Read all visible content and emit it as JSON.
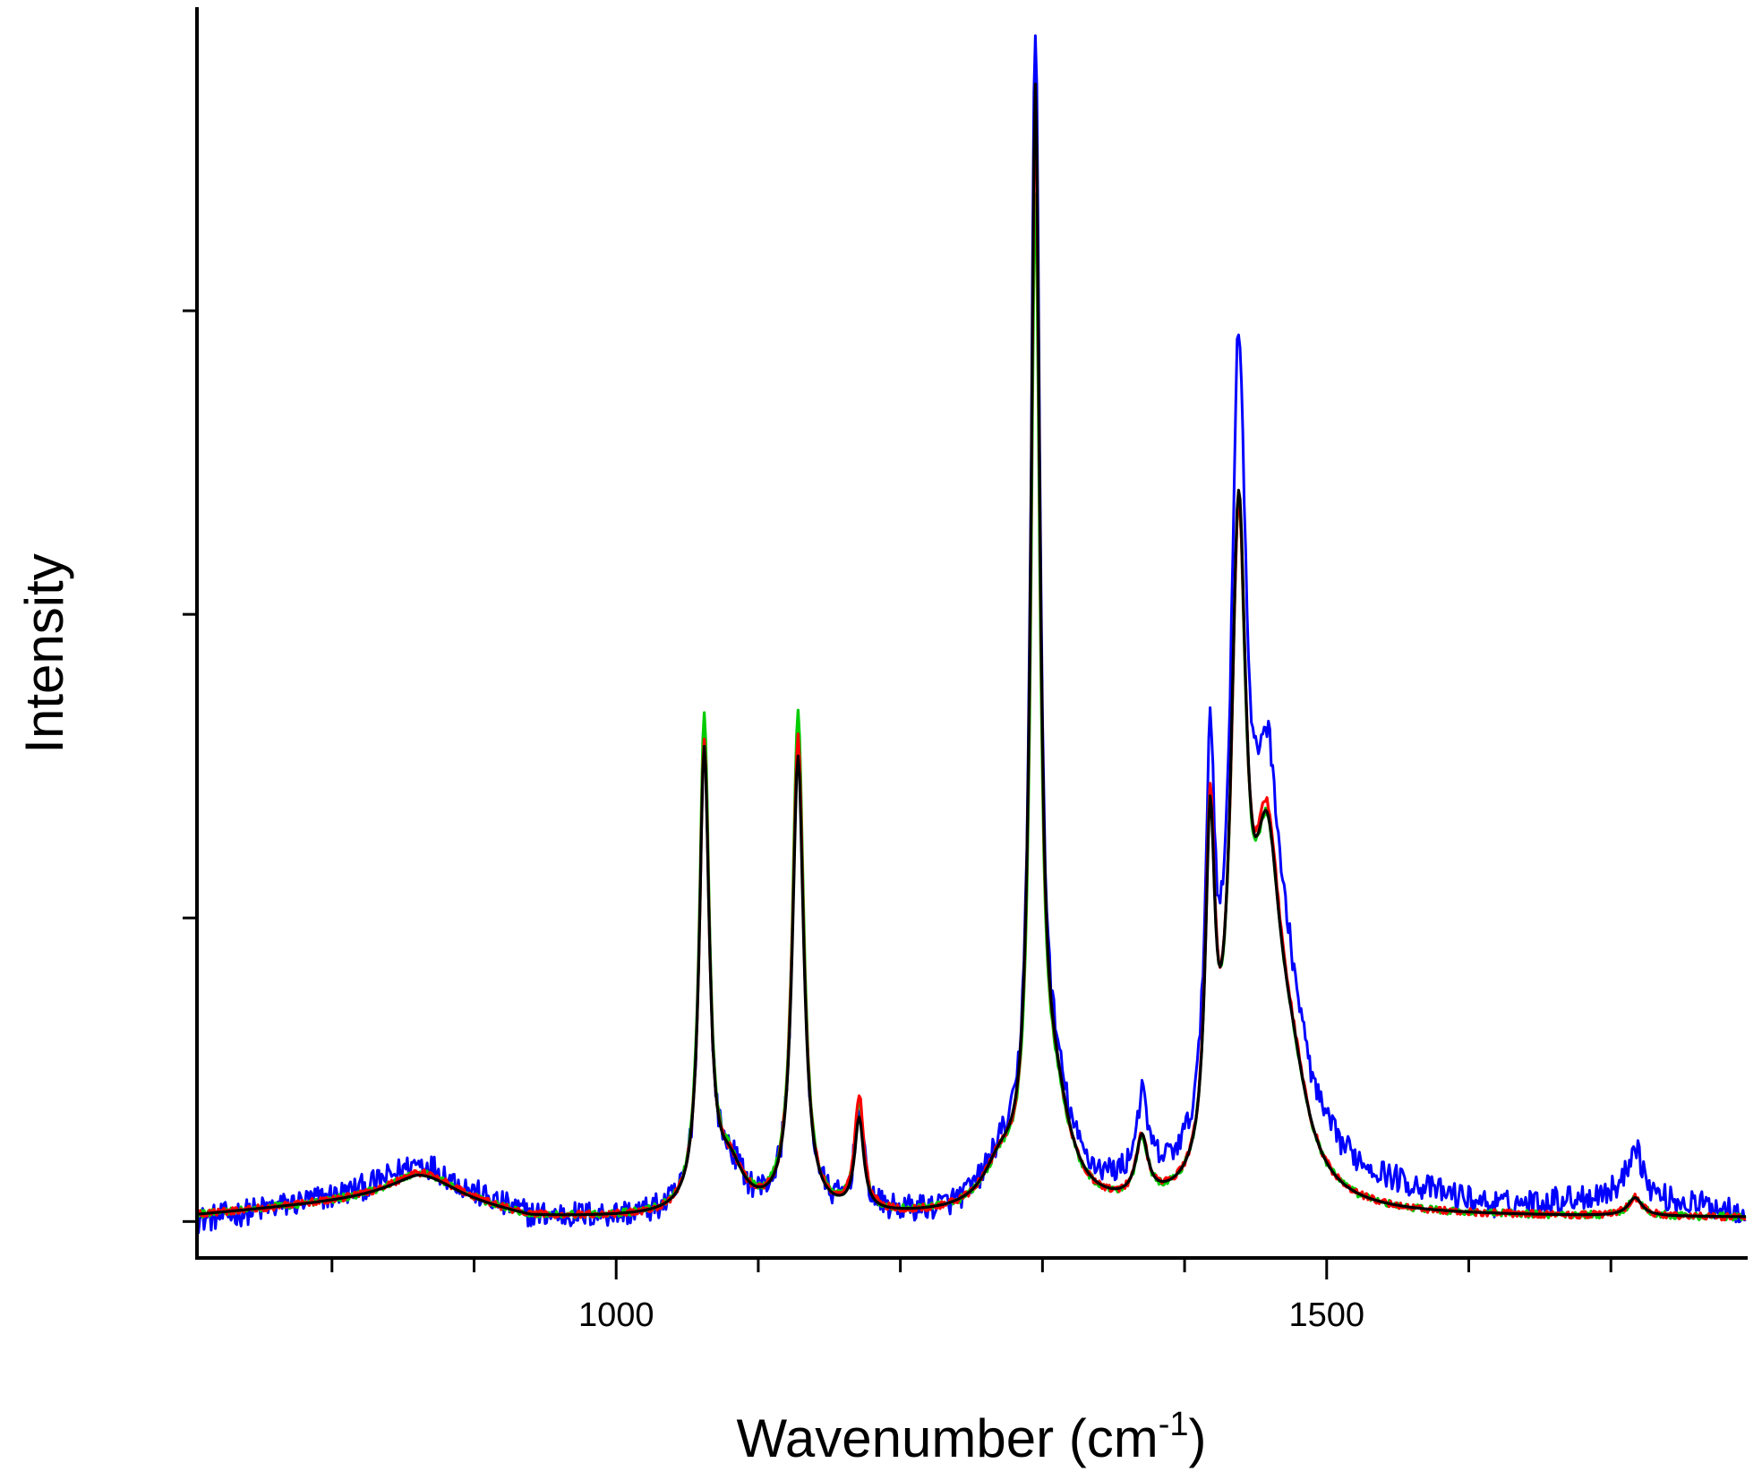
{
  "chart_data": {
    "type": "line",
    "title": "",
    "xlabel": "Wavenumber (cm",
    "xlabel_sup": "-1",
    "xlabel_close": ")",
    "ylabel": "Intensity",
    "xlim": [
      705,
      1795
    ],
    "ylim": [
      -0.03,
      1.0
    ],
    "x_ticks_labeled": [
      {
        "value": 1000,
        "label": "1000"
      },
      {
        "value": 1500,
        "label": "1500"
      }
    ],
    "x_ticks_minor": [
      800,
      900,
      1100,
      1200,
      1300,
      1400,
      1600,
      1700
    ],
    "y_ticks": [
      0,
      0.25,
      0.5,
      0.75
    ],
    "y_tick_labels_shown": false,
    "grid": false,
    "legend": "none",
    "series_colors": [
      "#0000ff",
      "#00cc00",
      "#ff0000",
      "#000000"
    ],
    "series": [
      {
        "color": "#0000ff",
        "noise": 0.011,
        "baseline": [
          [
            705,
            0
          ],
          [
            860,
            0.028
          ],
          [
            940,
            0.002
          ],
          [
            1230,
            0.002
          ],
          [
            1500,
            0.035
          ],
          [
            1620,
            0.01
          ],
          [
            1700,
            0.02
          ],
          [
            1795,
            0.008
          ]
        ],
        "peaks": [
          {
            "center": 865,
            "height": 0.02,
            "width": 30
          },
          {
            "center": 1062,
            "height": 0.385,
            "width": 4.2
          },
          {
            "center": 1080,
            "height": 0.035,
            "width": 12
          },
          {
            "center": 1128,
            "height": 0.39,
            "width": 4.8
          },
          {
            "center": 1171,
            "height": 0.085,
            "width": 3.8
          },
          {
            "center": 1270,
            "height": 0.03,
            "width": 14
          },
          {
            "center": 1295,
            "height": 0.92,
            "width": 3.8
          },
          {
            "center": 1308,
            "height": 0.08,
            "width": 14
          },
          {
            "center": 1370,
            "height": 0.065,
            "width": 5
          },
          {
            "center": 1418,
            "height": 0.305,
            "width": 4
          },
          {
            "center": 1438,
            "height": 0.61,
            "width": 6.5
          },
          {
            "center": 1458,
            "height": 0.28,
            "width": 12
          },
          {
            "center": 1475,
            "height": 0.08,
            "width": 15
          },
          {
            "center": 1717,
            "height": 0.045,
            "width": 6
          }
        ]
      },
      {
        "color": "#00cc00",
        "noise": 0.003,
        "baseline": [
          [
            705,
            0.005
          ],
          [
            860,
            0.02
          ],
          [
            940,
            0.002
          ],
          [
            1230,
            0.002
          ],
          [
            1500,
            0.004
          ],
          [
            1795,
            0.003
          ]
        ],
        "peaks": [
          {
            "center": 865,
            "height": 0.02,
            "width": 30
          },
          {
            "center": 1062,
            "height": 0.4,
            "width": 4.2
          },
          {
            "center": 1080,
            "height": 0.035,
            "width": 12
          },
          {
            "center": 1128,
            "height": 0.41,
            "width": 4.8
          },
          {
            "center": 1171,
            "height": 0.09,
            "width": 3.8
          },
          {
            "center": 1270,
            "height": 0.03,
            "width": 14
          },
          {
            "center": 1295,
            "height": 0.79,
            "width": 3.8
          },
          {
            "center": 1308,
            "height": 0.08,
            "width": 14
          },
          {
            "center": 1370,
            "height": 0.05,
            "width": 5
          },
          {
            "center": 1418,
            "height": 0.28,
            "width": 4
          },
          {
            "center": 1438,
            "height": 0.5,
            "width": 6.5
          },
          {
            "center": 1458,
            "height": 0.25,
            "width": 12
          },
          {
            "center": 1475,
            "height": 0.07,
            "width": 15
          },
          {
            "center": 1717,
            "height": 0.015,
            "width": 6
          }
        ]
      },
      {
        "color": "#ff0000",
        "noise": 0.003,
        "baseline": [
          [
            705,
            0.005
          ],
          [
            860,
            0.02
          ],
          [
            940,
            0.002
          ],
          [
            1230,
            0.002
          ],
          [
            1500,
            0.004
          ],
          [
            1795,
            0.003
          ]
        ],
        "peaks": [
          {
            "center": 865,
            "height": 0.02,
            "width": 30
          },
          {
            "center": 1062,
            "height": 0.38,
            "width": 4.2
          },
          {
            "center": 1080,
            "height": 0.035,
            "width": 12
          },
          {
            "center": 1128,
            "height": 0.39,
            "width": 4.8
          },
          {
            "center": 1171,
            "height": 0.095,
            "width": 3.8
          },
          {
            "center": 1270,
            "height": 0.03,
            "width": 14
          },
          {
            "center": 1295,
            "height": 0.86,
            "width": 3.8
          },
          {
            "center": 1308,
            "height": 0.08,
            "width": 14
          },
          {
            "center": 1370,
            "height": 0.05,
            "width": 5
          },
          {
            "center": 1418,
            "height": 0.28,
            "width": 4
          },
          {
            "center": 1438,
            "height": 0.5,
            "width": 6.5
          },
          {
            "center": 1458,
            "height": 0.26,
            "width": 12
          },
          {
            "center": 1475,
            "height": 0.07,
            "width": 15
          },
          {
            "center": 1717,
            "height": 0.015,
            "width": 6
          }
        ]
      },
      {
        "color": "#000000",
        "noise": 0.0,
        "baseline": [
          [
            705,
            0.005
          ],
          [
            860,
            0.02
          ],
          [
            940,
            0.002
          ],
          [
            1230,
            0.002
          ],
          [
            1500,
            0.004
          ],
          [
            1795,
            0.003
          ]
        ],
        "peaks": [
          {
            "center": 865,
            "height": 0.018,
            "width": 30
          },
          {
            "center": 1062,
            "height": 0.375,
            "width": 4.2
          },
          {
            "center": 1080,
            "height": 0.035,
            "width": 12
          },
          {
            "center": 1128,
            "height": 0.375,
            "width": 4.8
          },
          {
            "center": 1171,
            "height": 0.075,
            "width": 3.8
          },
          {
            "center": 1270,
            "height": 0.03,
            "width": 14
          },
          {
            "center": 1295,
            "height": 0.88,
            "width": 3.8
          },
          {
            "center": 1308,
            "height": 0.08,
            "width": 14
          },
          {
            "center": 1370,
            "height": 0.05,
            "width": 5
          },
          {
            "center": 1418,
            "height": 0.27,
            "width": 4
          },
          {
            "center": 1438,
            "height": 0.51,
            "width": 6.5
          },
          {
            "center": 1458,
            "height": 0.25,
            "width": 12
          },
          {
            "center": 1475,
            "height": 0.07,
            "width": 15
          },
          {
            "center": 1717,
            "height": 0.015,
            "width": 6
          }
        ]
      }
    ]
  }
}
